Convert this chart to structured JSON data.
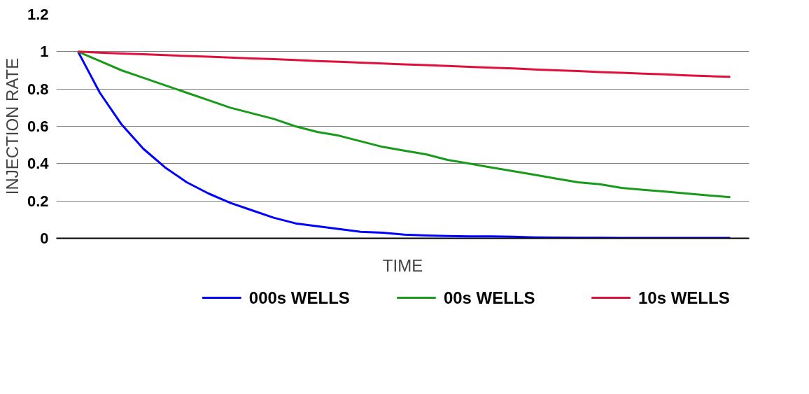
{
  "chart_data": {
    "type": "line",
    "xlabel": "TIME",
    "ylabel": "INJECTION RATE",
    "categories": [
      null,
      null,
      null,
      null,
      null,
      null,
      null,
      null,
      null,
      null,
      null,
      null,
      null,
      null,
      null,
      null,
      null,
      null,
      null,
      null,
      null,
      null,
      null,
      null,
      null,
      null,
      null,
      null,
      null,
      null,
      null
    ],
    "series": [
      {
        "name": "000s WELLS",
        "color": "#0000ff",
        "values": [
          1.0,
          0.78,
          0.61,
          0.48,
          0.38,
          0.3,
          0.24,
          0.19,
          0.15,
          0.11,
          0.08,
          0.065,
          0.05,
          0.035,
          0.03,
          0.02,
          0.015,
          0.012,
          0.01,
          0.01,
          0.008,
          0.005,
          0.004,
          0.003,
          0.003,
          0.002,
          0.002,
          0.002,
          0.002,
          0.002,
          0.002
        ]
      },
      {
        "name": "00s WELLS",
        "color": "#1a9a1a",
        "values": [
          1.0,
          0.95,
          0.9,
          0.86,
          0.82,
          0.78,
          0.74,
          0.7,
          0.67,
          0.64,
          0.6,
          0.57,
          0.55,
          0.52,
          0.49,
          0.47,
          0.45,
          0.42,
          0.4,
          0.38,
          0.36,
          0.34,
          0.32,
          0.3,
          0.29,
          0.27,
          0.26,
          0.25,
          0.24,
          0.23,
          0.22
        ]
      },
      {
        "name": "10s WELLS",
        "color": "#e0103c",
        "values": [
          1.0,
          0.995,
          0.99,
          0.986,
          0.982,
          0.977,
          0.973,
          0.968,
          0.964,
          0.96,
          0.955,
          0.95,
          0.946,
          0.941,
          0.937,
          0.932,
          0.928,
          0.923,
          0.919,
          0.914,
          0.91,
          0.905,
          0.9,
          0.896,
          0.891,
          0.887,
          0.882,
          0.878,
          0.873,
          0.869,
          0.865
        ]
      }
    ],
    "ylim": [
      0,
      1.2
    ],
    "yticks": [
      0,
      0.2,
      0.4,
      0.6,
      0.8,
      1,
      1.2
    ],
    "grid": "y",
    "legend": "bottom",
    "tick_labels": "y",
    "marker": "none",
    "line_style": "solid"
  }
}
